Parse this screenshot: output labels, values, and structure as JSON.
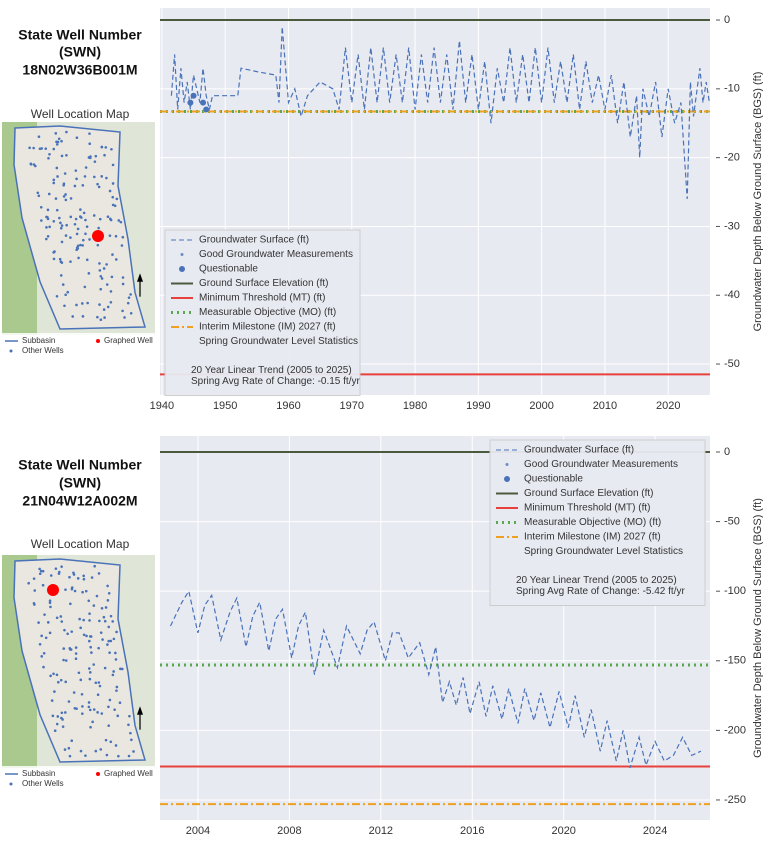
{
  "chart_data": [
    {
      "type": "line",
      "xlim": [
        1939.7,
        2026.6
      ],
      "ylim": [
        -54.5,
        1.75
      ],
      "xticks": [
        1940,
        1950,
        1960,
        1970,
        1980,
        1990,
        2000,
        2010,
        2020
      ],
      "yticks": [
        0,
        -10,
        -20,
        -30,
        -40,
        -50
      ],
      "ylabel": "Groundwater Depth Below Ground Surface (BGS) (ft)",
      "grid": true,
      "legend": "lower left",
      "series": [
        {
          "name": "Groundwater Surface (ft)",
          "color": "#4a72b8",
          "style": "dashed",
          "x": [
            1941.5,
            1942,
            1942.5,
            1943,
            1943.5,
            1944,
            1944.5,
            1945,
            1946,
            1946.5,
            1947,
            1947.5,
            1948,
            1950,
            1952,
            1952.5,
            1955,
            1958,
            1958.5,
            1959,
            1960,
            1961,
            1962,
            1963,
            1965,
            1967,
            1968,
            1969,
            1970,
            1971,
            1972,
            1973,
            1974,
            1975,
            1976,
            1977,
            1978,
            1979,
            1980,
            1981,
            1982,
            1983,
            1984,
            1985,
            1986,
            1987,
            1988,
            1989,
            1990,
            1991,
            1992,
            1993,
            1994,
            1995,
            1996,
            1997,
            1998,
            1999,
            2000,
            2001,
            2002,
            2003,
            2004,
            2005,
            2006,
            2007,
            2008,
            2009,
            2010,
            2011,
            2012,
            2013,
            2014,
            2015,
            2015.5,
            2016,
            2017,
            2018,
            2019,
            2020,
            2021,
            2022,
            2023,
            2023.5,
            2024,
            2025,
            2025.5,
            2026,
            2026.5
          ],
          "values": [
            -11,
            -5,
            -13,
            -7,
            -12,
            -9,
            -13,
            -8,
            -12,
            -7,
            -11,
            -13,
            -11,
            -11,
            -11,
            -7,
            -7.5,
            -8,
            -12,
            -1,
            -12,
            -10,
            -14,
            -11,
            -9,
            -10,
            -13,
            -4,
            -12,
            -5,
            -13,
            -4,
            -12,
            -4,
            -12,
            -5,
            -12,
            -4,
            -13,
            -5,
            -12,
            -4,
            -12,
            -5,
            -13,
            -3,
            -12,
            -5,
            -13,
            -6,
            -15,
            -7,
            -12,
            -4,
            -12,
            -5,
            -12,
            -4,
            -12,
            -4,
            -12,
            -6,
            -12,
            -5,
            -13,
            -6,
            -12,
            -8,
            -13,
            -8,
            -15,
            -9,
            -17,
            -11,
            -20,
            -10,
            -14,
            -9,
            -17,
            -10,
            -15,
            -12,
            -26,
            -9,
            -14,
            -7,
            -12,
            -9,
            -12
          ]
        },
        {
          "name": "Good Groundwater Measurements",
          "color": "#6a8cc8",
          "style": "point"
        },
        {
          "name": "Questionable",
          "color": "#4a72b8",
          "style": "marker",
          "x": [
            1944.5,
            1945,
            1946.5,
            1947
          ],
          "values": [
            -12,
            -11,
            -12,
            -13
          ]
        }
      ],
      "reference_lines": [
        {
          "name": "Ground Surface Elevation (ft)",
          "color": "#4b5a3c",
          "style": "solid",
          "value": 0
        },
        {
          "name": "Minimum Threshold (MT) (ft)",
          "color": "#e8413c",
          "style": "solid",
          "value": -51.5
        },
        {
          "name": "Measurable Objective (MO) (ft)",
          "color": "#5aa84c",
          "style": "dotted",
          "value": -13.3
        },
        {
          "name": "Interim Milestone (IM) 2027 (ft)",
          "color": "#f0a020",
          "style": "dashdot",
          "value": -13.3
        }
      ],
      "legend_notes": [
        "Spring Groundwater Level Statistics",
        "20 Year Linear Trend (2005 to 2025)",
        "Spring Avg Rate of Change: -0.15 ft/yr"
      ]
    },
    {
      "type": "line",
      "xlim": [
        2002.34,
        2026.4
      ],
      "ylim": [
        -264.4,
        11.5
      ],
      "xticks": [
        2004,
        2008,
        2012,
        2016,
        2020,
        2024
      ],
      "yticks": [
        0,
        -50,
        -100,
        -150,
        -200,
        -250
      ],
      "ylabel": "Groundwater Depth Below Ground Surface (BGS) (ft)",
      "grid": true,
      "legend": "upper right",
      "series": [
        {
          "name": "Groundwater Surface (ft)",
          "color": "#4a72b8",
          "style": "dashed",
          "x": [
            2002.8,
            2003.3,
            2003.6,
            2004.0,
            2004.3,
            2004.6,
            2005.0,
            2005.4,
            2005.7,
            2006.1,
            2006.4,
            2006.7,
            2007.1,
            2007.4,
            2007.7,
            2008.1,
            2008.4,
            2008.7,
            2009.1,
            2009.5,
            2010.1,
            2010.5,
            2011.1,
            2011.4,
            2011.7,
            2012.2,
            2012.5,
            2012.8,
            2013.2,
            2013.7,
            2014.1,
            2014.4,
            2014.7,
            2015.0,
            2015.3,
            2015.6,
            2015.9,
            2016.3,
            2016.6,
            2016.9,
            2017.3,
            2017.6,
            2018.0,
            2018.3,
            2018.7,
            2019.0,
            2019.4,
            2019.8,
            2020.2,
            2020.5,
            2020.9,
            2021.2,
            2021.6,
            2021.9,
            2022.3,
            2022.6,
            2022.9,
            2023.3,
            2023.6,
            2024.0,
            2024.4,
            2024.8,
            2025.2,
            2025.6,
            2026.0
          ],
          "values": [
            -125,
            -108,
            -100,
            -130,
            -110,
            -103,
            -135,
            -115,
            -105,
            -140,
            -118,
            -108,
            -143,
            -120,
            -113,
            -148,
            -125,
            -115,
            -160,
            -128,
            -155,
            -125,
            -145,
            -128,
            -122,
            -150,
            -130,
            -130,
            -148,
            -137,
            -160,
            -140,
            -180,
            -165,
            -182,
            -162,
            -188,
            -165,
            -190,
            -168,
            -192,
            -170,
            -195,
            -170,
            -193,
            -173,
            -198,
            -172,
            -198,
            -175,
            -205,
            -185,
            -215,
            -193,
            -222,
            -200,
            -227,
            -205,
            -225,
            -208,
            -222,
            -218,
            -205,
            -218,
            -215
          ]
        },
        {
          "name": "Good Groundwater Measurements",
          "color": "#6a8cc8",
          "style": "point"
        },
        {
          "name": "Questionable",
          "color": "#4a72b8",
          "style": "marker",
          "x": [],
          "values": []
        }
      ],
      "reference_lines": [
        {
          "name": "Ground Surface Elevation (ft)",
          "color": "#4b5a3c",
          "style": "solid",
          "value": 0
        },
        {
          "name": "Minimum Threshold (MT) (ft)",
          "color": "#e8413c",
          "style": "solid",
          "value": -226
        },
        {
          "name": "Measurable Objective (MO) (ft)",
          "color": "#5aa84c",
          "style": "dotted",
          "value": -153
        },
        {
          "name": "Interim Milestone (IM) 2027 (ft)",
          "color": "#f0a020",
          "style": "dashdot",
          "value": -253
        }
      ],
      "legend_notes": [
        "Spring Groundwater Level Statistics",
        "20 Year Linear Trend (2005 to 2025)",
        "Spring Avg Rate of Change: -5.42 ft/yr"
      ]
    }
  ],
  "panels": [
    {
      "well_title": "State Well Number",
      "swn": "(SWN)",
      "well_number": "18N02W36B001M",
      "map_title": "Well Location Map",
      "map_legend": [
        "Subbasin",
        "Other Wells",
        "Graphed Well"
      ]
    },
    {
      "well_title": "State Well Number",
      "swn": "(SWN)",
      "well_number": "21N04W12A002M",
      "map_title": "Well Location Map",
      "map_legend": [
        "Subbasin",
        "Other Wells",
        "Graphed Well"
      ]
    }
  ]
}
